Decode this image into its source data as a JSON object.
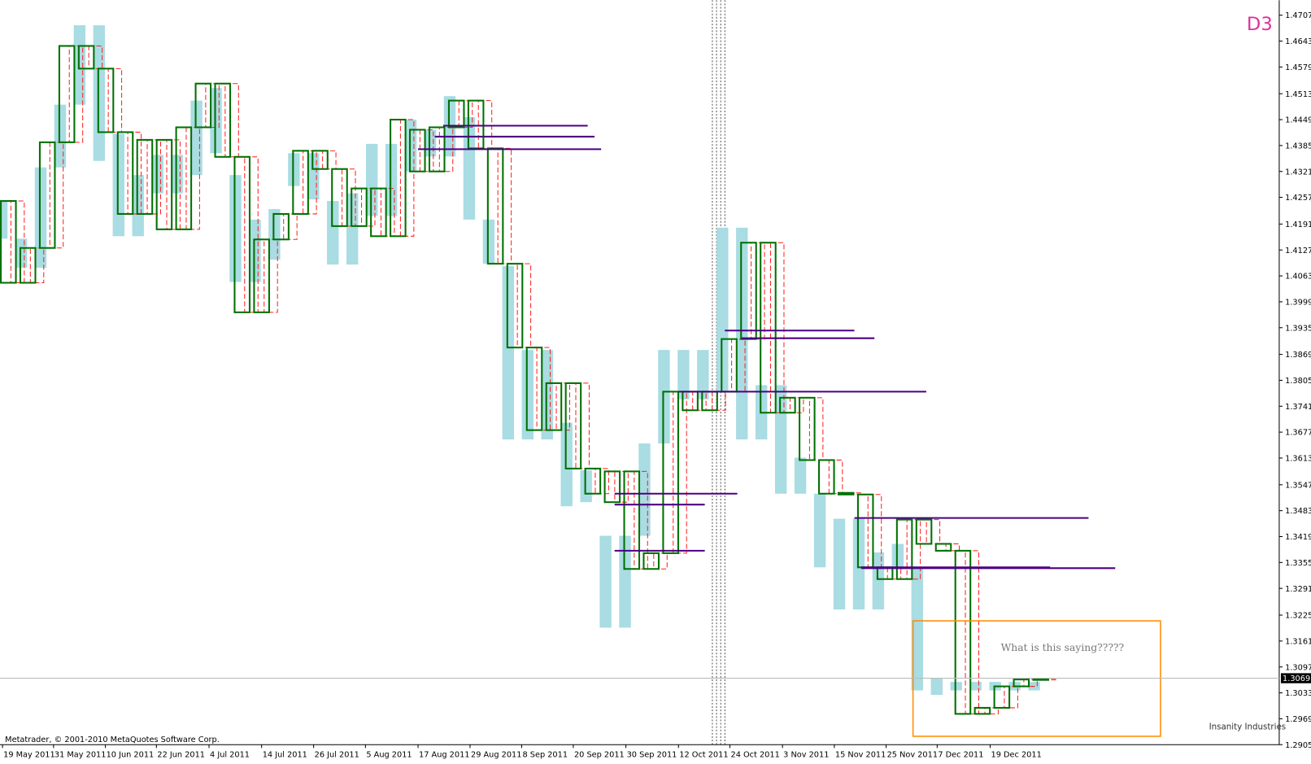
{
  "chart_data": {
    "type": "candlestick",
    "title": "D3",
    "footer": "Metatrader, © 2001-2010 MetaQuotes Software Corp.",
    "logo": "Insanity Industries",
    "annotation": "What is this saying?????",
    "xlim": [
      -0.43,
      65.24
    ],
    "ylim": [
      1.2905,
      1.4744
    ],
    "xticks": [
      {
        "value": -0.3,
        "label": "19 May 2011"
      },
      {
        "value": 2.32,
        "label": "31 May 2011"
      },
      {
        "value": 4.98,
        "label": "10 Jun 2011"
      },
      {
        "value": 7.6,
        "label": "22 Jun 2011"
      },
      {
        "value": 10.3,
        "label": "4 Jul 2011"
      },
      {
        "value": 13.0,
        "label": "14 Jul 2011"
      },
      {
        "value": 15.67,
        "label": "26 Jul 2011"
      },
      {
        "value": 18.33,
        "label": "5 Aug 2011"
      },
      {
        "value": 21.03,
        "label": "17 Aug 2011"
      },
      {
        "value": 23.7,
        "label": "29 Aug 2011"
      },
      {
        "value": 26.35,
        "label": "8 Sep 2011"
      },
      {
        "value": 29.0,
        "label": "20 Sep 2011"
      },
      {
        "value": 31.7,
        "label": "30 Sep 2011"
      },
      {
        "value": 34.4,
        "label": "12 Oct 2011"
      },
      {
        "value": 37.04,
        "label": "24 Oct 2011"
      },
      {
        "value": 39.74,
        "label": "3 Nov 2011"
      },
      {
        "value": 42.4,
        "label": "15 Nov 2011"
      },
      {
        "value": 45.06,
        "label": "25 Nov 2011"
      },
      {
        "value": 47.68,
        "label": "7 Dec 2011"
      },
      {
        "value": 50.4,
        "label": "19 Dec 2011"
      }
    ],
    "yticks": [
      {
        "value": 1.4707,
        "label": "1.47070"
      },
      {
        "value": 1.4643,
        "label": "1.46430"
      },
      {
        "value": 1.4579,
        "label": "1.45790"
      },
      {
        "value": 1.4513,
        "label": "1.45130"
      },
      {
        "value": 1.4449,
        "label": "1.44490"
      },
      {
        "value": 1.4385,
        "label": "1.43850"
      },
      {
        "value": 1.4321,
        "label": "1.43210"
      },
      {
        "value": 1.4257,
        "label": "1.42570"
      },
      {
        "value": 1.4191,
        "label": "1.41910"
      },
      {
        "value": 1.4127,
        "label": "1.41270"
      },
      {
        "value": 1.4063,
        "label": "1.40630"
      },
      {
        "value": 1.3999,
        "label": "1.39990"
      },
      {
        "value": 1.3935,
        "label": "1.39350"
      },
      {
        "value": 1.3869,
        "label": "1.38690"
      },
      {
        "value": 1.3805,
        "label": "1.38050"
      },
      {
        "value": 1.3741,
        "label": "1.37410"
      },
      {
        "value": 1.3677,
        "label": "1.36770"
      },
      {
        "value": 1.3613,
        "label": "1.36130"
      },
      {
        "value": 1.3547,
        "label": "1.35470"
      },
      {
        "value": 1.3483,
        "label": "1.34830"
      },
      {
        "value": 1.3419,
        "label": "1.34190"
      },
      {
        "value": 1.3355,
        "label": "1.33550"
      },
      {
        "value": 1.3291,
        "label": "1.32910"
      },
      {
        "value": 1.3225,
        "label": "1.32250"
      },
      {
        "value": 1.3161,
        "label": "1.31610"
      },
      {
        "value": 1.3097,
        "label": "1.30970"
      },
      {
        "value": 1.3033,
        "label": "1.30330"
      },
      {
        "value": 1.2969,
        "label": "1.29690"
      },
      {
        "value": 1.2905,
        "label": "1.29050"
      }
    ],
    "current_price": 1.30691,
    "series": [
      {
        "style": "bar",
        "color": "#a9dce3",
        "values": [
          [
            1.4248,
            1.4155
          ],
          [
            1.4155,
            1.4083
          ],
          [
            1.4331,
            1.4083
          ],
          [
            1.4486,
            1.4331
          ],
          [
            1.4682,
            1.4486
          ],
          [
            1.4682,
            1.4347
          ],
          [
            1.4414,
            1.4161
          ],
          [
            1.4312,
            1.4161
          ],
          [
            1.4362,
            1.4267
          ],
          [
            1.4362,
            1.4267
          ],
          [
            1.4496,
            1.4312
          ],
          [
            1.4527,
            1.4366
          ],
          [
            1.4312,
            1.4048
          ],
          [
            1.4202,
            1.4048
          ],
          [
            1.4228,
            1.4103
          ],
          [
            1.4366,
            1.4285
          ],
          [
            1.4366,
            1.4252
          ],
          [
            1.4248,
            1.4091
          ],
          [
            1.4267,
            1.4091
          ],
          [
            1.4389,
            1.4211
          ],
          [
            1.4389,
            1.4211
          ],
          [
            1.4449,
            1.4321
          ],
          [
            1.4424,
            1.4358
          ],
          [
            1.4507,
            1.4358
          ],
          [
            1.4455,
            1.4202
          ],
          [
            1.4202,
            1.4093
          ],
          [
            1.4087,
            1.3659
          ],
          [
            1.388,
            1.3659
          ],
          [
            1.388,
            1.3659
          ],
          [
            1.37,
            1.3494
          ],
          [
            1.3583,
            1.3504
          ],
          [
            1.3421,
            1.3194
          ],
          [
            1.3421,
            1.3194
          ],
          [
            1.3649,
            1.3421
          ],
          [
            1.388,
            1.3649
          ],
          [
            1.388,
            1.3758
          ],
          [
            1.388,
            1.3758
          ],
          [
            1.4182,
            1.3779
          ],
          [
            1.4182,
            1.3659
          ],
          [
            1.3793,
            1.3659
          ],
          [
            1.3793,
            1.3525
          ],
          [
            1.3614,
            1.3525
          ],
          [
            1.3525,
            1.3343
          ],
          [
            1.3463,
            1.3239
          ],
          [
            1.3463,
            1.3239
          ],
          [
            1.338,
            1.3239
          ],
          [
            1.3401,
            1.3339
          ],
          [
            1.3339,
            1.3039
          ],
          [
            1.307,
            1.3028
          ],
          [
            1.306,
            1.3039
          ],
          [
            1.306,
            1.3039
          ],
          [
            1.306,
            1.3039
          ],
          [
            1.306,
            1.3039
          ],
          [
            1.306,
            1.3039
          ]
        ]
      },
      {
        "style": "dashed",
        "color": "#ff2020",
        "values": [
          [
            1.4248,
            1.4046
          ],
          [
            1.4132,
            1.4046
          ],
          [
            1.4393,
            1.4132
          ],
          [
            1.4631,
            1.4393
          ],
          [
            1.4631,
            1.4575
          ],
          [
            1.4575,
            1.4418
          ],
          [
            1.4418,
            1.4216
          ],
          [
            1.4399,
            1.4216
          ],
          [
            1.4399,
            1.4178
          ],
          [
            1.443,
            1.4178
          ],
          [
            1.4538,
            1.443
          ],
          [
            1.4538,
            1.4357
          ],
          [
            1.4357,
            1.3973
          ],
          [
            1.4153,
            1.3973
          ],
          [
            1.4216,
            1.4153
          ],
          [
            1.4372,
            1.4216
          ],
          [
            1.4372,
            1.4327
          ],
          [
            1.4327,
            1.4186
          ],
          [
            1.4279,
            1.4186
          ],
          [
            1.4279,
            1.4161
          ],
          [
            1.4449,
            1.4161
          ],
          [
            1.4424,
            1.4321
          ],
          [
            1.443,
            1.4321
          ],
          [
            1.4496,
            1.443
          ],
          [
            1.4496,
            1.4378
          ],
          [
            1.4378,
            1.4093
          ],
          [
            1.4093,
            1.3886
          ],
          [
            1.3886,
            1.3682
          ],
          [
            1.3798,
            1.3682
          ],
          [
            1.3798,
            1.3587
          ],
          [
            1.3587,
            1.3525
          ],
          [
            1.358,
            1.3504
          ],
          [
            1.358,
            1.3339
          ],
          [
            1.3378,
            1.3339
          ],
          [
            1.3777,
            1.3378
          ],
          [
            1.3777,
            1.3731
          ],
          [
            1.3777,
            1.3731
          ],
          [
            1.3907,
            1.3777
          ],
          [
            1.4145,
            1.3907
          ],
          [
            1.4145,
            1.3725
          ],
          [
            1.3762,
            1.3725
          ],
          [
            1.3762,
            1.3608
          ],
          [
            1.3608,
            1.3525
          ],
          [
            1.3527,
            1.3523
          ],
          [
            1.3523,
            1.3343
          ],
          [
            1.3343,
            1.3314
          ],
          [
            1.3461,
            1.3314
          ],
          [
            1.3461,
            1.3401
          ],
          [
            1.3401,
            1.3384
          ],
          [
            1.3384,
            1.2981
          ],
          [
            1.2996,
            1.2981
          ],
          [
            1.3049,
            1.2996
          ],
          [
            1.3066,
            1.3049
          ],
          [
            1.3068,
            1.3066
          ]
        ]
      },
      {
        "style": "box",
        "color": "#007000",
        "values": [
          [
            1.4248,
            1.4046
          ],
          [
            1.4132,
            1.4046
          ],
          [
            1.4393,
            1.4132
          ],
          [
            1.4631,
            1.4393
          ],
          [
            1.4631,
            1.4575
          ],
          [
            1.4575,
            1.4418
          ],
          [
            1.4418,
            1.4216
          ],
          [
            1.4399,
            1.4216
          ],
          [
            1.4399,
            1.4178
          ],
          [
            1.443,
            1.4178
          ],
          [
            1.4538,
            1.443
          ],
          [
            1.4538,
            1.4357
          ],
          [
            1.4357,
            1.3973
          ],
          [
            1.4153,
            1.3973
          ],
          [
            1.4216,
            1.4153
          ],
          [
            1.4372,
            1.4216
          ],
          [
            1.4372,
            1.4327
          ],
          [
            1.4327,
            1.4186
          ],
          [
            1.4279,
            1.4186
          ],
          [
            1.4279,
            1.4161
          ],
          [
            1.4449,
            1.4161
          ],
          [
            1.4424,
            1.4321
          ],
          [
            1.443,
            1.4321
          ],
          [
            1.4496,
            1.443
          ],
          [
            1.4496,
            1.4378
          ],
          [
            1.4378,
            1.4093
          ],
          [
            1.4093,
            1.3886
          ],
          [
            1.3886,
            1.3682
          ],
          [
            1.3798,
            1.3682
          ],
          [
            1.3798,
            1.3587
          ],
          [
            1.3587,
            1.3525
          ],
          [
            1.358,
            1.3504
          ],
          [
            1.358,
            1.3339
          ],
          [
            1.3378,
            1.3339
          ],
          [
            1.3777,
            1.3378
          ],
          [
            1.3777,
            1.3731
          ],
          [
            1.3777,
            1.3731
          ],
          [
            1.3907,
            1.3777
          ],
          [
            1.4145,
            1.3907
          ],
          [
            1.4145,
            1.3725
          ],
          [
            1.3762,
            1.3725
          ],
          [
            1.3762,
            1.3608
          ],
          [
            1.3608,
            1.3525
          ],
          [
            1.3527,
            1.3523
          ],
          [
            1.3523,
            1.3343
          ],
          [
            1.3343,
            1.3314
          ],
          [
            1.3461,
            1.3314
          ],
          [
            1.3461,
            1.3401
          ],
          [
            1.3401,
            1.3384
          ],
          [
            1.3384,
            1.2981
          ],
          [
            1.2996,
            1.2981
          ],
          [
            1.3049,
            1.2996
          ],
          [
            1.3066,
            1.3049
          ],
          [
            1.3068,
            1.3066
          ]
        ]
      }
    ],
    "levels": {
      "color": "#4b0082",
      "lines": [
        {
          "value": 1.4434,
          "x": [
            22.32,
            29.74
          ]
        },
        {
          "value": 1.4407,
          "x": [
            21.89,
            30.09
          ]
        },
        {
          "value": 1.4376,
          "x": [
            21.03,
            30.43
          ]
        },
        {
          "value": 1.3928,
          "x": [
            36.78,
            43.43
          ]
        },
        {
          "value": 1.3909,
          "x": [
            37.64,
            44.46
          ]
        },
        {
          "value": 1.3777,
          "x": [
            34.42,
            47.12
          ]
        },
        {
          "value": 1.3525,
          "x": [
            31.12,
            37.42
          ]
        },
        {
          "value": 1.3498,
          "x": [
            31.12,
            35.75
          ]
        },
        {
          "value": 1.3384,
          "x": [
            31.12,
            35.75
          ]
        },
        {
          "value": 1.3465,
          "x": [
            43.43,
            55.45
          ]
        },
        {
          "value": 1.3343,
          "x": [
            43.78,
            53.48
          ]
        },
        {
          "value": 1.3341,
          "x": [
            43.78,
            56.82
          ]
        }
      ]
    }
  }
}
